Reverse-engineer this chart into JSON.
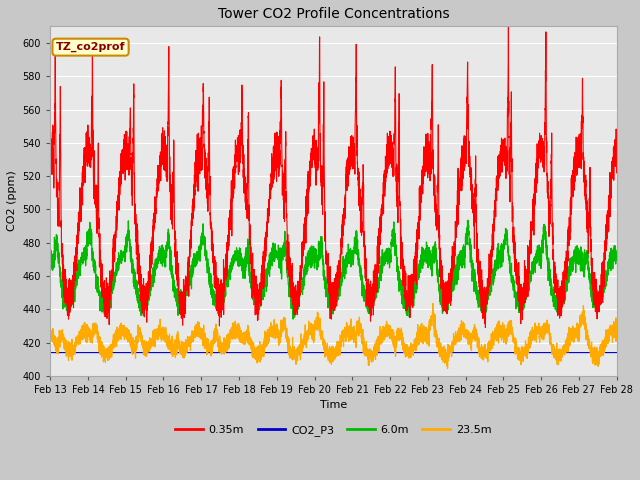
{
  "title": "Tower CO2 Profile Concentrations",
  "xlabel": "Time",
  "ylabel": "CO2 (ppm)",
  "ylim": [
    400,
    610
  ],
  "yticks": [
    400,
    420,
    440,
    460,
    480,
    500,
    520,
    540,
    560,
    580,
    600
  ],
  "xtick_labels": [
    "Feb 13",
    "Feb 14",
    "Feb 15",
    "Feb 16",
    "Feb 17",
    "Feb 18",
    "Feb 19",
    "Feb 20",
    "Feb 21",
    "Feb 22",
    "Feb 23",
    "Feb 24",
    "Feb 25",
    "Feb 26",
    "Feb 27",
    "Feb 28"
  ],
  "legend_labels": [
    "0.35m",
    "CO2_P3",
    "6.0m",
    "23.5m"
  ],
  "legend_colors": [
    "#ff0000",
    "#0000cc",
    "#00bb00",
    "#ffaa00"
  ],
  "annotation_text": "TZ_co2prof",
  "annotation_bg": "#ffffcc",
  "annotation_border": "#cc8800",
  "annotation_text_color": "#880000",
  "fig_bg_color": "#c8c8c8",
  "plot_bg_color": "#e8e8e8",
  "grid_color": "#ffffff",
  "n_points": 5000,
  "seed": 12345
}
